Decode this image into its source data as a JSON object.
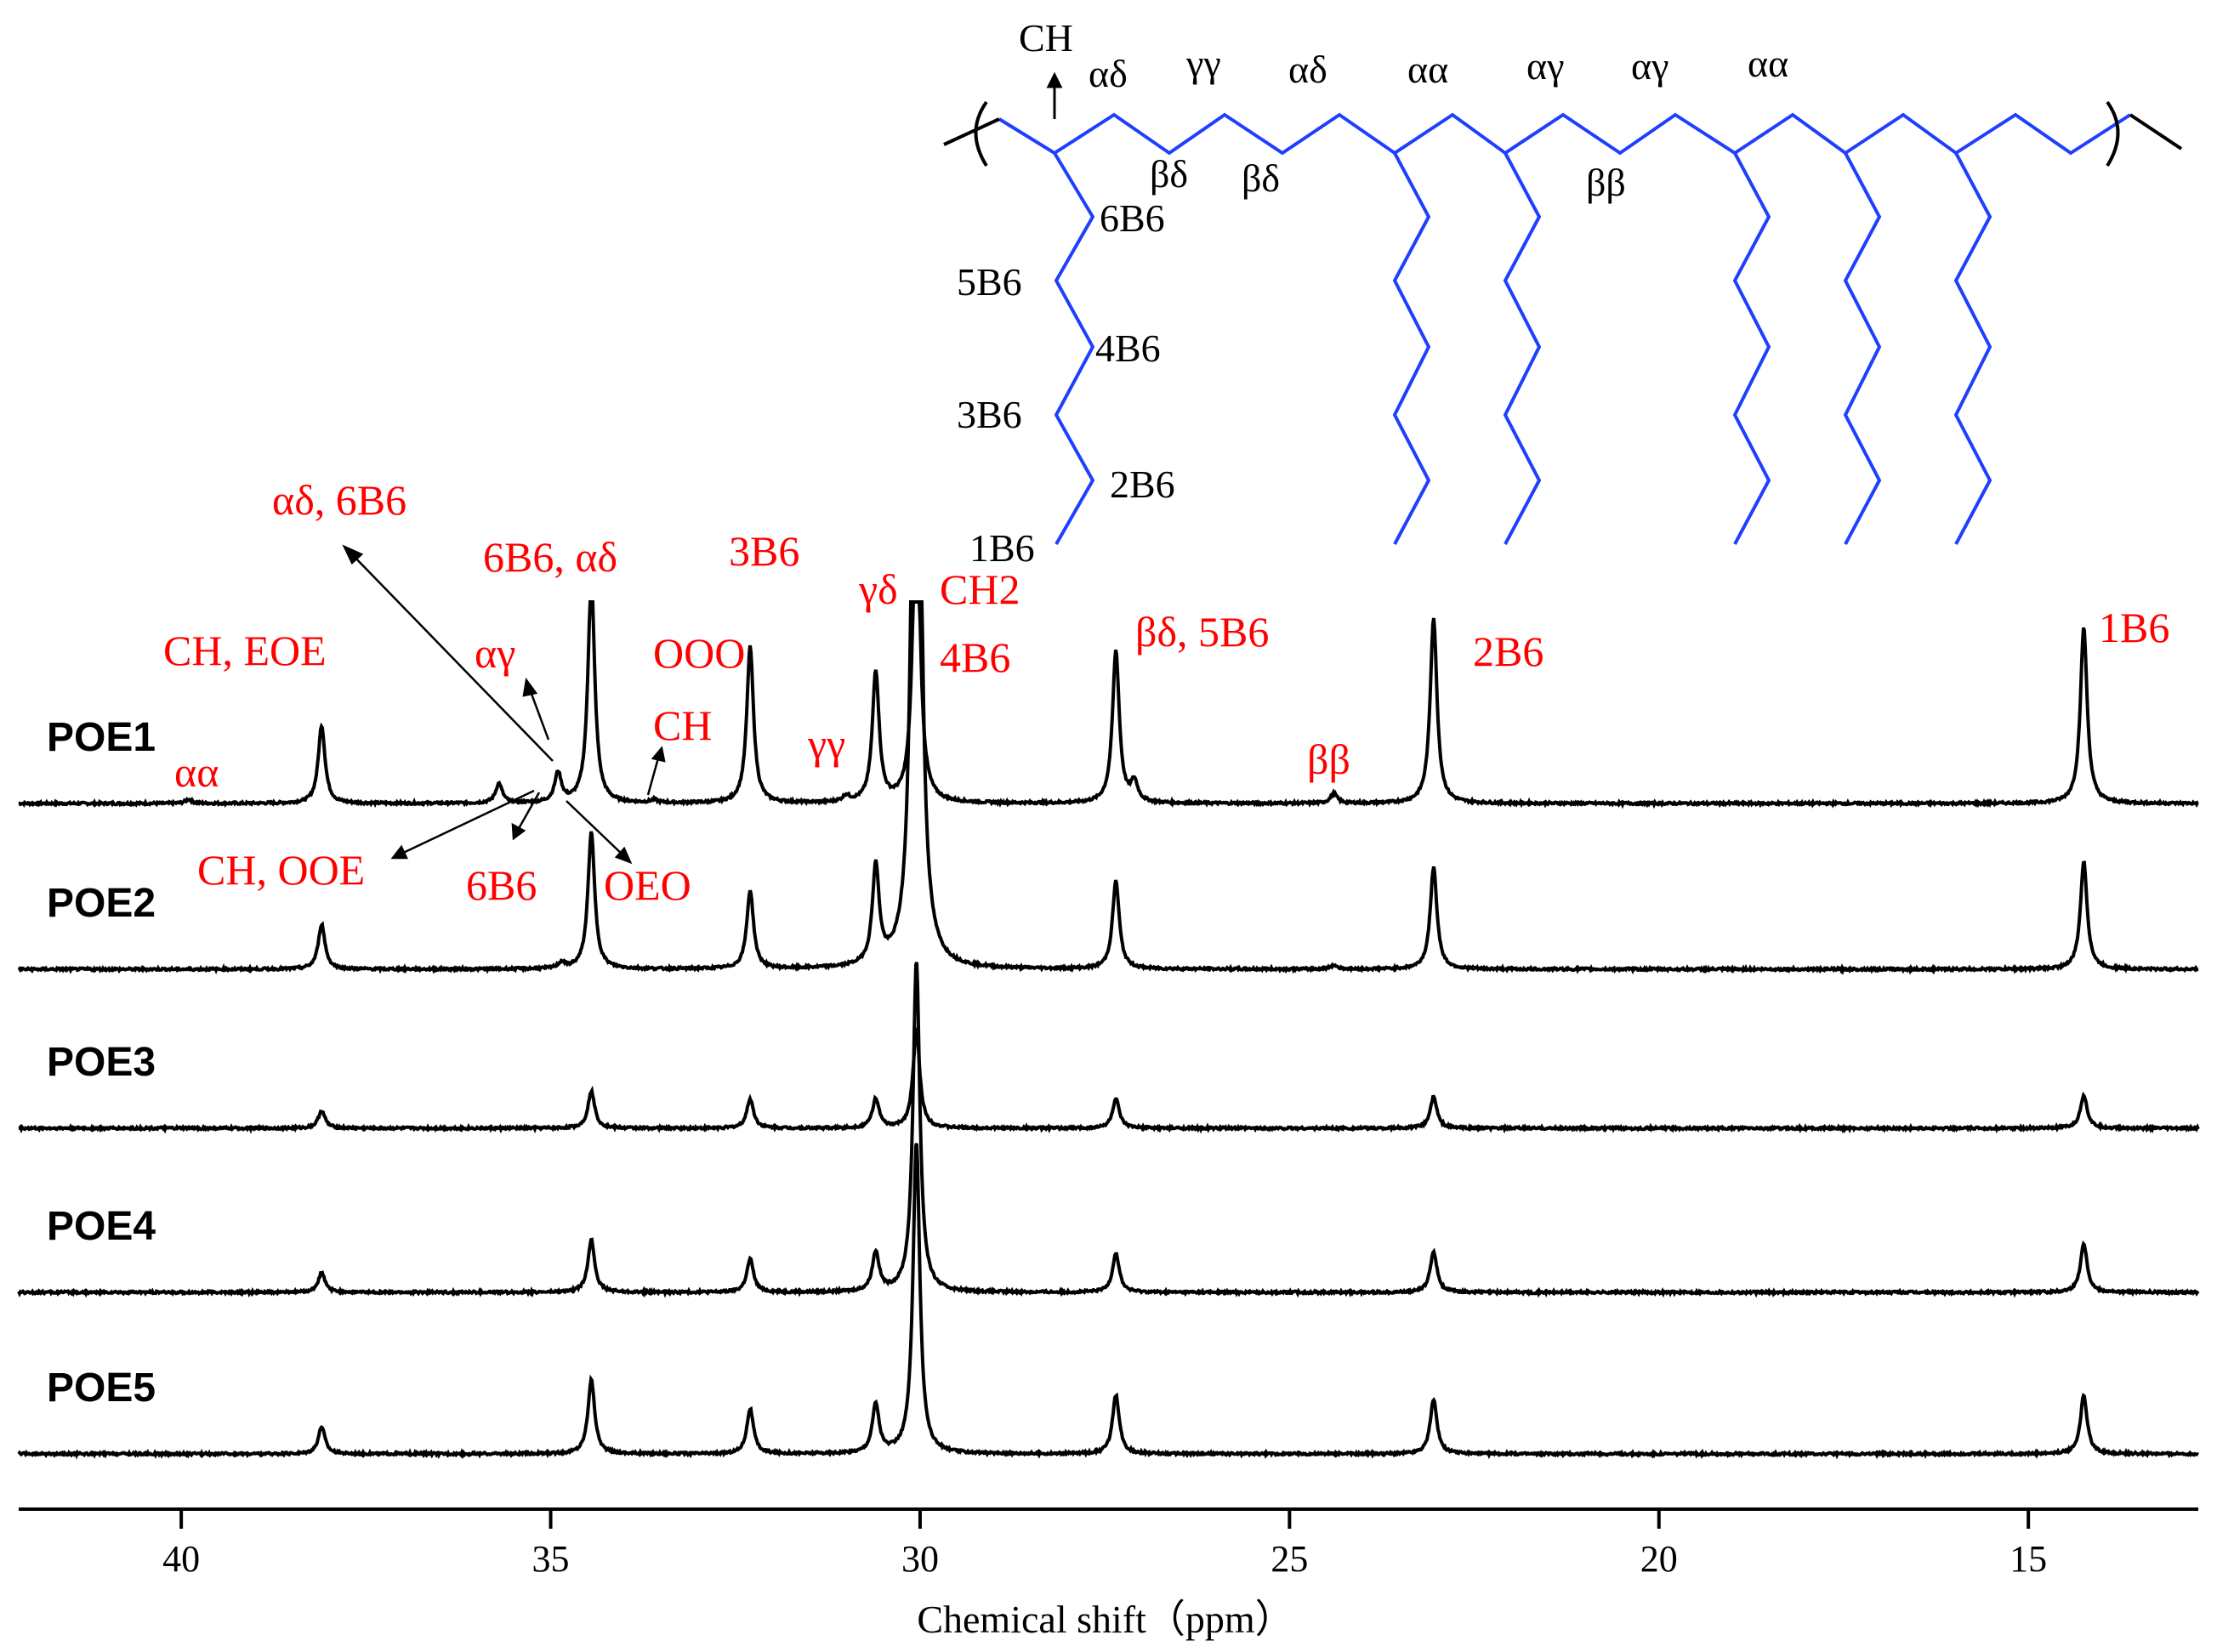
{
  "chart_data": {
    "type": "line",
    "title": "",
    "xlabel": "Chemical shift（ppm）",
    "ylabel": "",
    "xlim": [
      42.2,
      12.7
    ],
    "x_ticks": [
      40,
      35,
      30,
      25,
      20,
      15
    ],
    "x_tick_labels": [
      "40",
      "35",
      "30",
      "25",
      "20",
      "15"
    ],
    "grid": false,
    "legend": "none",
    "series": [
      {
        "name": "POE1",
        "peaks": [
          {
            "ppm": 39.9,
            "height": 0.02
          },
          {
            "ppm": 38.1,
            "height": 0.4
          },
          {
            "ppm": 35.7,
            "height": 0.1
          },
          {
            "ppm": 34.9,
            "height": 0.15
          },
          {
            "ppm": 34.45,
            "height": 1.15
          },
          {
            "ppm": 33.6,
            "height": 0.015
          },
          {
            "ppm": 32.3,
            "height": 0.8
          },
          {
            "ppm": 31.0,
            "height": 0.03
          },
          {
            "ppm": 30.6,
            "height": 0.67
          },
          {
            "ppm": 30.05,
            "height": 1.7
          },
          {
            "ppm": 27.35,
            "height": 0.78
          },
          {
            "ppm": 27.1,
            "height": 0.1
          },
          {
            "ppm": 24.4,
            "height": 0.05
          },
          {
            "ppm": 23.05,
            "height": 0.95
          },
          {
            "ppm": 14.25,
            "height": 0.9
          }
        ]
      },
      {
        "name": "POE2",
        "peaks": [
          {
            "ppm": 38.1,
            "height": 0.23
          },
          {
            "ppm": 34.85,
            "height": 0.03
          },
          {
            "ppm": 34.45,
            "height": 0.7
          },
          {
            "ppm": 32.3,
            "height": 0.4
          },
          {
            "ppm": 30.6,
            "height": 0.5
          },
          {
            "ppm": 30.05,
            "height": 5.6
          },
          {
            "ppm": 27.35,
            "height": 0.45
          },
          {
            "ppm": 24.4,
            "height": 0.02
          },
          {
            "ppm": 23.05,
            "height": 0.52
          },
          {
            "ppm": 14.25,
            "height": 0.55
          }
        ]
      },
      {
        "name": "POE3",
        "peaks": [
          {
            "ppm": 38.1,
            "height": 0.09
          },
          {
            "ppm": 34.45,
            "height": 0.19
          },
          {
            "ppm": 32.3,
            "height": 0.15
          },
          {
            "ppm": 30.6,
            "height": 0.15
          },
          {
            "ppm": 30.05,
            "height": 0.5
          },
          {
            "ppm": 27.35,
            "height": 0.15
          },
          {
            "ppm": 23.05,
            "height": 0.16
          },
          {
            "ppm": 14.25,
            "height": 0.17
          }
        ]
      },
      {
        "name": "POE4",
        "peaks": [
          {
            "ppm": 38.1,
            "height": 0.1
          },
          {
            "ppm": 34.45,
            "height": 0.27
          },
          {
            "ppm": 32.3,
            "height": 0.17
          },
          {
            "ppm": 30.6,
            "height": 0.2
          },
          {
            "ppm": 30.05,
            "height": 1.7
          },
          {
            "ppm": 27.35,
            "height": 0.2
          },
          {
            "ppm": 23.05,
            "height": 0.21
          },
          {
            "ppm": 14.25,
            "height": 0.25
          }
        ]
      },
      {
        "name": "POE5",
        "peaks": [
          {
            "ppm": 38.1,
            "height": 0.14
          },
          {
            "ppm": 34.45,
            "height": 0.38
          },
          {
            "ppm": 32.3,
            "height": 0.23
          },
          {
            "ppm": 30.6,
            "height": 0.25
          },
          {
            "ppm": 30.05,
            "height": 1.6
          },
          {
            "ppm": 27.35,
            "height": 0.3
          },
          {
            "ppm": 23.05,
            "height": 0.28
          },
          {
            "ppm": 14.25,
            "height": 0.3
          }
        ]
      }
    ],
    "annotations": [
      {
        "text": "αδ, 6B6",
        "ppm": 34.9
      },
      {
        "text": "6B6, αδ",
        "ppm": 34.45
      },
      {
        "text": "3B6",
        "ppm": 32.3
      },
      {
        "text": "CH, EOE",
        "ppm": 38.1
      },
      {
        "text": "αγ",
        "ppm": 34.9
      },
      {
        "text": "OOO",
        "ppm": 32.4
      },
      {
        "text": "CH",
        "ppm": 33.6
      },
      {
        "text": "αα",
        "ppm": 39.9
      },
      {
        "text": "γγ",
        "ppm": 31.0
      },
      {
        "text": "γδ",
        "ppm": 30.6
      },
      {
        "text": "CH2",
        "ppm": 30.05
      },
      {
        "text": "4B6",
        "ppm": 30.05
      },
      {
        "text": "βδ, 5B6",
        "ppm": 27.35
      },
      {
        "text": "2B6",
        "ppm": 23.05
      },
      {
        "text": "ββ",
        "ppm": 24.4
      },
      {
        "text": "1B6",
        "ppm": 14.25
      },
      {
        "text": "CH, OOE",
        "ppm": 35.7
      },
      {
        "text": "6B6",
        "ppm": 34.9
      },
      {
        "text": "OEO",
        "ppm": 34.9
      }
    ]
  },
  "structure": {
    "labels": [
      "CH",
      "αδ",
      "γγ",
      "αδ",
      "αα",
      "αγ",
      "αγ",
      "αα",
      "βδ",
      "βδ",
      "ββ",
      "6B6",
      "5B6",
      "4B6",
      "3B6",
      "2B6",
      "1B6"
    ],
    "bond_color": "#1f3fff"
  },
  "colors": {
    "trace": "#000000",
    "annotation": "#ff0000"
  }
}
